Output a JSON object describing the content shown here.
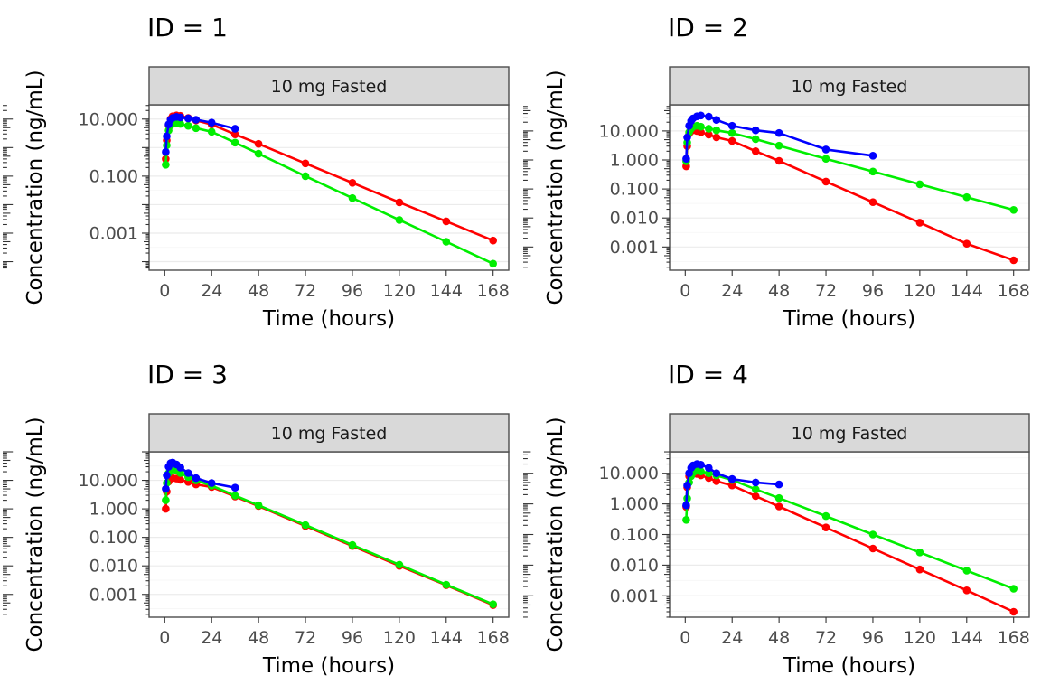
{
  "figure": {
    "background": "#ffffff"
  },
  "style": {
    "panel_border": "#4d4d4d",
    "strip_fill": "#d9d9d9",
    "strip_text": "#1a1a1a",
    "grid_major": "#ebebeb",
    "grid_minor": "#f5f5f5",
    "axis_tick": "#333333",
    "axis_text": "#4d4d4d",
    "axis_title": "#000000",
    "title_color": "#000000"
  },
  "chart_data": [
    {
      "type": "line",
      "title": "ID = 1",
      "strip_label": "10 mg Fasted",
      "xlabel": "Time (hours)",
      "ylabel": "Concentration (ng/mL)",
      "legend": "none",
      "grid": "horizontal-only",
      "y_scale": "log10",
      "x_ticks": [
        0,
        24,
        48,
        72,
        96,
        120,
        144,
        168
      ],
      "x_range": [
        -8,
        176
      ],
      "ylog_range": [
        -4.3,
        1.5
      ],
      "y_tick_labels": [
        {
          "value": 10,
          "label": "10.000"
        },
        {
          "value": 0.1,
          "label": "0.100"
        },
        {
          "value": 0.001,
          "label": "0.001"
        }
      ],
      "series": [
        {
          "name": "red",
          "color": "#FF0000",
          "x": [
            0.5,
            1,
            2,
            3,
            4,
            6,
            8,
            12,
            16,
            24,
            36,
            48,
            72,
            96,
            120,
            144,
            168
          ],
          "y": [
            0.4,
            1.8,
            6,
            10,
            12.5,
            13.5,
            13,
            11,
            9,
            6.5,
            2.9,
            1.35,
            0.28,
            0.058,
            0.012,
            0.0026,
            0.00055
          ]
        },
        {
          "name": "green",
          "color": "#00EE00",
          "x": [
            0.5,
            1,
            2,
            3,
            4,
            6,
            8,
            12,
            16,
            24,
            36,
            48,
            72,
            96,
            120,
            144,
            168
          ],
          "y": [
            0.25,
            1.2,
            4,
            6,
            7,
            7.2,
            6.8,
            5.8,
            4.8,
            3.6,
            1.5,
            0.61,
            0.1,
            0.017,
            0.0029,
            0.0005,
            8.5e-05
          ]
        },
        {
          "name": "blue",
          "color": "#0000FF",
          "x": [
            0.5,
            1,
            2,
            3,
            4,
            6,
            8,
            12,
            16,
            24,
            36
          ],
          "y": [
            0.7,
            2.5,
            6.5,
            9.5,
            11,
            12,
            11.5,
            10.5,
            9.5,
            7.5,
            4.6
          ]
        }
      ]
    },
    {
      "type": "line",
      "title": "ID = 2",
      "strip_label": "10 mg Fasted",
      "xlabel": "Time (hours)",
      "ylabel": "Concentration (ng/mL)",
      "legend": "none",
      "grid": "horizontal-only",
      "y_scale": "log10",
      "x_ticks": [
        0,
        24,
        48,
        72,
        96,
        120,
        144,
        168
      ],
      "x_range": [
        -8,
        176
      ],
      "ylog_range": [
        -3.8,
        1.9
      ],
      "y_tick_labels": [
        {
          "value": 10,
          "label": "10.000"
        },
        {
          "value": 1,
          "label": "1.000"
        },
        {
          "value": 0.1,
          "label": "0.100"
        },
        {
          "value": 0.01,
          "label": "0.010"
        },
        {
          "value": 0.001,
          "label": "0.001"
        }
      ],
      "series": [
        {
          "name": "red",
          "color": "#FF0000",
          "x": [
            0.5,
            1,
            2,
            3,
            4,
            6,
            8,
            12,
            16,
            24,
            36,
            48,
            72,
            96,
            120,
            144,
            168
          ],
          "y": [
            0.6,
            3,
            8,
            10,
            10.5,
            10,
            9,
            7.5,
            6,
            4.5,
            2.0,
            0.93,
            0.18,
            0.035,
            0.0069,
            0.0013,
            0.00035
          ]
        },
        {
          "name": "green",
          "color": "#00EE00",
          "x": [
            0.5,
            1,
            2,
            3,
            4,
            6,
            8,
            12,
            16,
            24,
            36,
            48,
            72,
            96,
            120,
            144,
            168
          ],
          "y": [
            0.9,
            4,
            9,
            12,
            14,
            15,
            14,
            12,
            10.5,
            8.5,
            5.2,
            3.1,
            1.1,
            0.4,
            0.145,
            0.052,
            0.019
          ]
        },
        {
          "name": "blue",
          "color": "#0000FF",
          "x": [
            0.5,
            1,
            2,
            3,
            4,
            6,
            8,
            12,
            16,
            24,
            36,
            48,
            72,
            96
          ],
          "y": [
            1.1,
            6,
            15,
            22,
            27,
            32,
            34,
            31,
            24,
            15,
            10.5,
            8.5,
            2.3,
            1.4
          ]
        }
      ]
    },
    {
      "type": "line",
      "title": "ID = 3",
      "strip_label": "10 mg Fasted",
      "xlabel": "Time (hours)",
      "ylabel": "Concentration (ng/mL)",
      "legend": "none",
      "grid": "horizontal-only",
      "y_scale": "log10",
      "x_ticks": [
        0,
        24,
        48,
        72,
        96,
        120,
        144,
        168
      ],
      "x_range": [
        -8,
        176
      ],
      "ylog_range": [
        -3.8,
        2.0
      ],
      "y_tick_labels": [
        {
          "value": 10,
          "label": "10.000"
        },
        {
          "value": 1,
          "label": "1.000"
        },
        {
          "value": 0.1,
          "label": "0.100"
        },
        {
          "value": 0.01,
          "label": "0.010"
        },
        {
          "value": 0.001,
          "label": "0.001"
        }
      ],
      "series": [
        {
          "name": "red",
          "color": "#FF0000",
          "x": [
            0.5,
            1,
            2,
            3,
            4,
            6,
            8,
            12,
            16,
            24,
            36,
            48,
            72,
            96,
            120,
            144,
            168
          ],
          "y": [
            1,
            4,
            9,
            11.5,
            12,
            11.5,
            10.5,
            8.8,
            7.2,
            5.8,
            2.7,
            1.25,
            0.25,
            0.05,
            0.01,
            0.0021,
            0.00042
          ]
        },
        {
          "name": "green",
          "color": "#00EE00",
          "x": [
            0.5,
            1,
            2,
            3,
            4,
            6,
            8,
            12,
            16,
            24,
            36,
            48,
            72,
            96,
            120,
            144,
            168
          ],
          "y": [
            2,
            8,
            18,
            24,
            25,
            22,
            18,
            13,
            10,
            6.5,
            2.9,
            1.33,
            0.27,
            0.054,
            0.011,
            0.0022,
            0.00045
          ]
        },
        {
          "name": "blue",
          "color": "#0000FF",
          "x": [
            0.5,
            1,
            2,
            3,
            4,
            6,
            8,
            12,
            16,
            24,
            36
          ],
          "y": [
            5,
            15,
            30,
            40,
            42,
            36,
            28,
            18,
            12,
            8,
            5.5
          ]
        }
      ]
    },
    {
      "type": "line",
      "title": "ID = 4",
      "strip_label": "10 mg Fasted",
      "xlabel": "Time (hours)",
      "ylabel": "Concentration (ng/mL)",
      "legend": "none",
      "grid": "horizontal-only",
      "y_scale": "log10",
      "x_ticks": [
        0,
        24,
        48,
        72,
        96,
        120,
        144,
        168
      ],
      "x_range": [
        -8,
        176
      ],
      "ylog_range": [
        -3.7,
        1.7
      ],
      "y_tick_labels": [
        {
          "value": 10,
          "label": "10.000"
        },
        {
          "value": 1,
          "label": "1.000"
        },
        {
          "value": 0.1,
          "label": "0.100"
        },
        {
          "value": 0.01,
          "label": "0.010"
        },
        {
          "value": 0.001,
          "label": "0.001"
        }
      ],
      "series": [
        {
          "name": "red",
          "color": "#FF0000",
          "x": [
            0.5,
            1,
            2,
            3,
            4,
            6,
            8,
            12,
            16,
            24,
            36,
            48,
            72,
            96,
            120,
            144,
            168
          ],
          "y": [
            0.8,
            3.5,
            8,
            10,
            10.2,
            9.5,
            8.5,
            7,
            5.5,
            4,
            1.8,
            0.82,
            0.17,
            0.035,
            0.0072,
            0.0015,
            0.0003
          ]
        },
        {
          "name": "green",
          "color": "#00EE00",
          "x": [
            0.5,
            1,
            2,
            3,
            4,
            6,
            8,
            12,
            16,
            24,
            36,
            48,
            72,
            96,
            120,
            144,
            168
          ],
          "y": [
            0.3,
            1.5,
            5,
            8,
            10.5,
            12,
            11.5,
            10,
            8.5,
            6,
            3,
            1.55,
            0.4,
            0.1,
            0.026,
            0.0066,
            0.0017
          ]
        },
        {
          "name": "blue",
          "color": "#0000FF",
          "x": [
            0.5,
            1,
            2,
            3,
            4,
            6,
            8,
            12,
            16,
            24,
            36,
            48
          ],
          "y": [
            0.9,
            4,
            10,
            15,
            18,
            20,
            19,
            15,
            10,
            6.5,
            5,
            4.3
          ]
        }
      ]
    }
  ]
}
